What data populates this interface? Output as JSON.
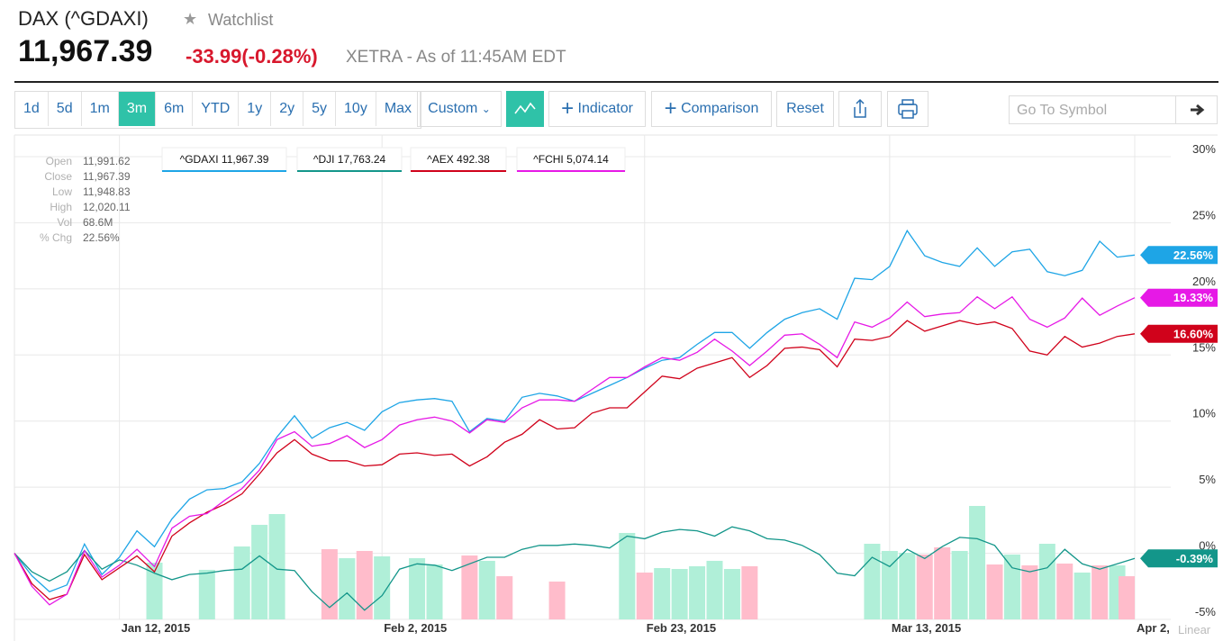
{
  "header": {
    "symbol": "DAX (^GDAXI)",
    "watchlist": "Watchlist",
    "price": "11,967.39",
    "change": "-33.99",
    "change_pct": "(-0.28%)",
    "exchange": "XETRA - As of 11:45AM EDT"
  },
  "toolbar": {
    "ranges": [
      {
        "label": "1d"
      },
      {
        "label": "5d"
      },
      {
        "label": "1m"
      },
      {
        "label": "3m",
        "active": true
      },
      {
        "label": "6m"
      },
      {
        "label": "YTD"
      },
      {
        "label": "1y"
      },
      {
        "label": "2y"
      },
      {
        "label": "5y"
      },
      {
        "label": "10y"
      },
      {
        "label": "Max"
      }
    ],
    "custom": "Custom",
    "indicator": "Indicator",
    "comparison": "Comparison",
    "reset": "Reset",
    "search_placeholder": "Go To Symbol"
  },
  "info": [
    [
      "Open",
      "11,991.62"
    ],
    [
      "Close",
      "11,967.39"
    ],
    [
      "Low",
      "11,948.83"
    ],
    [
      "High",
      "12,020.11"
    ],
    [
      "Vol",
      "68.6M"
    ],
    [
      "% Chg",
      "22.56%"
    ]
  ],
  "chart_data": {
    "type": "line",
    "categories": [
      null,
      null,
      null,
      null,
      null,
      null,
      "Jan 12, 2015",
      null,
      null,
      null,
      null,
      null,
      null,
      null,
      null,
      null,
      null,
      null,
      null,
      null,
      null,
      "Feb 2, 2015",
      null,
      null,
      null,
      null,
      null,
      null,
      null,
      null,
      null,
      null,
      null,
      null,
      null,
      null,
      "Feb 23, 2015",
      null,
      null,
      null,
      null,
      null,
      null,
      null,
      null,
      null,
      null,
      null,
      null,
      null,
      "Mar 13, 2015",
      null,
      null,
      null,
      null,
      null,
      null,
      null,
      null,
      null,
      null,
      null,
      null,
      null,
      "Apr 2,"
    ],
    "scale_label": "Linear",
    "ylim": [
      -5,
      30
    ],
    "yticks": [
      {
        "value": -5,
        "label": "-5%"
      },
      {
        "value": 0,
        "label": "0%"
      },
      {
        "value": 5,
        "label": "5%"
      },
      {
        "value": 10,
        "label": "10%"
      },
      {
        "value": 15,
        "label": "15%"
      },
      {
        "value": 20,
        "label": "20%"
      },
      {
        "value": 25,
        "label": "25%"
      },
      {
        "value": 30,
        "label": "30%"
      }
    ],
    "grid": true,
    "series": [
      {
        "name": "^GDAXI",
        "price": "11,967.39",
        "color": "#1ea5e6",
        "last_label": "22.56%",
        "values": [
          0,
          -1.7,
          -2.9,
          -2.4,
          0.7,
          -1.6,
          -0.3,
          1.7,
          0.5,
          2.6,
          4.1,
          4.8,
          4.9,
          5.4,
          6.8,
          8.8,
          10.4,
          8.7,
          9.5,
          9.9,
          9.3,
          10.7,
          11.4,
          11.6,
          11.7,
          11.5,
          9.2,
          10.2,
          10.0,
          11.8,
          12.1,
          11.9,
          11.5,
          12.1,
          12.7,
          13.3,
          14.0,
          14.6,
          14.8,
          15.8,
          16.7,
          16.7,
          15.5,
          16.7,
          17.7,
          18.2,
          18.5,
          17.7,
          20.8,
          20.7,
          21.7,
          24.4,
          22.5,
          22.0,
          21.7,
          23.1,
          21.7,
          22.8,
          23.0,
          21.3,
          21.0,
          21.4,
          23.6,
          22.4,
          22.56
        ]
      },
      {
        "name": "^DJI",
        "price": "17,763.24",
        "color": "#13968a",
        "last_label": "-0.39%",
        "values": [
          0,
          -1.4,
          -2.1,
          -1.4,
          0.2,
          -1.2,
          -0.5,
          -0.9,
          -1.5,
          -2.0,
          -1.6,
          -1.5,
          -1.3,
          -1.2,
          -0.2,
          -1.2,
          -1.3,
          -2.9,
          -4.1,
          -3.0,
          -4.3,
          -3.2,
          -1.2,
          -0.8,
          -0.9,
          -1.3,
          -0.8,
          -0.3,
          -0.3,
          0.3,
          0.6,
          0.6,
          0.7,
          0.6,
          0.4,
          1.3,
          1.1,
          1.6,
          1.8,
          1.7,
          1.3,
          2.0,
          1.7,
          1.1,
          1.0,
          0.6,
          -0.1,
          -1.5,
          -1.7,
          -0.3,
          -1.0,
          0.3,
          -0.4,
          0.5,
          1.2,
          1.1,
          0.6,
          -1.1,
          -1.4,
          -1.1,
          0.3,
          -0.8,
          -1.2,
          -0.8,
          -0.39
        ]
      },
      {
        "name": "^AEX",
        "price": "492.38",
        "color": "#d0021b",
        "last_label": "16.60%",
        "values": [
          0,
          -2.3,
          -3.5,
          -3.1,
          -0.1,
          -2.0,
          -1.1,
          -0.2,
          -1.4,
          1.3,
          2.3,
          3.1,
          3.7,
          4.5,
          6.0,
          7.6,
          8.6,
          7.5,
          7.0,
          7.0,
          6.6,
          6.7,
          7.5,
          7.6,
          7.4,
          7.5,
          6.6,
          7.3,
          8.4,
          9.0,
          10.1,
          9.4,
          9.5,
          10.6,
          11.0,
          11.0,
          12.2,
          13.4,
          13.2,
          14.0,
          14.4,
          14.8,
          13.3,
          14.2,
          15.5,
          15.6,
          15.4,
          14.1,
          16.2,
          16.1,
          16.4,
          17.6,
          16.8,
          17.2,
          17.6,
          17.3,
          17.5,
          17.0,
          15.3,
          15.0,
          16.4,
          15.6,
          15.9,
          16.4,
          16.6
        ]
      },
      {
        "name": "^FCHI",
        "price": "5,074.14",
        "color": "#e619e6",
        "last_label": "19.33%",
        "values": [
          0,
          -2.5,
          -3.9,
          -3.1,
          0.2,
          -1.8,
          -0.9,
          0.3,
          -1.0,
          1.9,
          2.8,
          3.0,
          4.0,
          4.9,
          6.3,
          8.6,
          9.2,
          8.1,
          8.3,
          8.9,
          8.0,
          8.6,
          9.7,
          10.1,
          10.3,
          10.0,
          9.1,
          10.1,
          9.9,
          11.0,
          11.6,
          11.6,
          11.5,
          12.4,
          13.3,
          13.3,
          14.1,
          14.8,
          14.6,
          15.2,
          16.2,
          15.3,
          14.2,
          15.3,
          16.5,
          16.6,
          15.8,
          14.8,
          17.5,
          17.1,
          17.8,
          19.0,
          17.9,
          18.1,
          18.2,
          19.4,
          18.5,
          19.4,
          17.7,
          17.1,
          17.8,
          19.3,
          18.0,
          18.7,
          19.33
        ]
      }
    ],
    "volume": {
      "values": [
        null,
        null,
        null,
        null,
        null,
        null,
        null,
        null,
        90.1,
        null,
        null,
        78.7,
        null,
        115.8,
        150.2,
        167.3,
        null,
        null,
        111.5,
        97.2,
        108.7,
        100.1,
        null,
        97.2,
        87.2,
        null,
        101.5,
        93.0,
        68.6,
        null,
        null,
        60.1,
        null,
        null,
        null,
        137.3,
        74.4,
        81.5,
        80.1,
        84.4,
        93.0,
        80.1,
        84.4,
        null,
        null,
        null,
        null,
        null,
        null,
        120.1,
        108.7,
        105.8,
        103.0,
        114.4,
        108.7,
        180.2,
        87.2,
        103.0,
        85.8,
        120.1,
        88.7,
        74.4,
        85.8,
        85.8,
        68.6
      ],
      "colors": [
        null,
        null,
        null,
        null,
        null,
        null,
        null,
        null,
        "#b0efd8",
        null,
        null,
        "#b0efd8",
        null,
        "#b0efd8",
        "#b0efd8",
        "#b0efd8",
        null,
        null,
        "#ffbccb",
        "#b0efd8",
        "#ffbccb",
        "#b0efd8",
        null,
        "#b0efd8",
        "#b0efd8",
        null,
        "#ffbccb",
        "#b0efd8",
        "#ffbccb",
        null,
        null,
        "#ffbccb",
        null,
        null,
        null,
        "#b0efd8",
        "#ffbccb",
        "#b0efd8",
        "#b0efd8",
        "#b0efd8",
        "#b0efd8",
        "#b0efd8",
        "#ffbccb",
        null,
        null,
        null,
        null,
        null,
        null,
        "#b0efd8",
        "#b0efd8",
        "#b0efd8",
        "#ffbccb",
        "#ffbccb",
        "#b0efd8",
        "#b0efd8",
        "#ffbccb",
        "#b0efd8",
        "#ffbccb",
        "#b0efd8",
        "#ffbccb",
        "#b0efd8",
        "#ffbccb",
        "#b0efd8",
        "#ffbccb"
      ]
    }
  }
}
